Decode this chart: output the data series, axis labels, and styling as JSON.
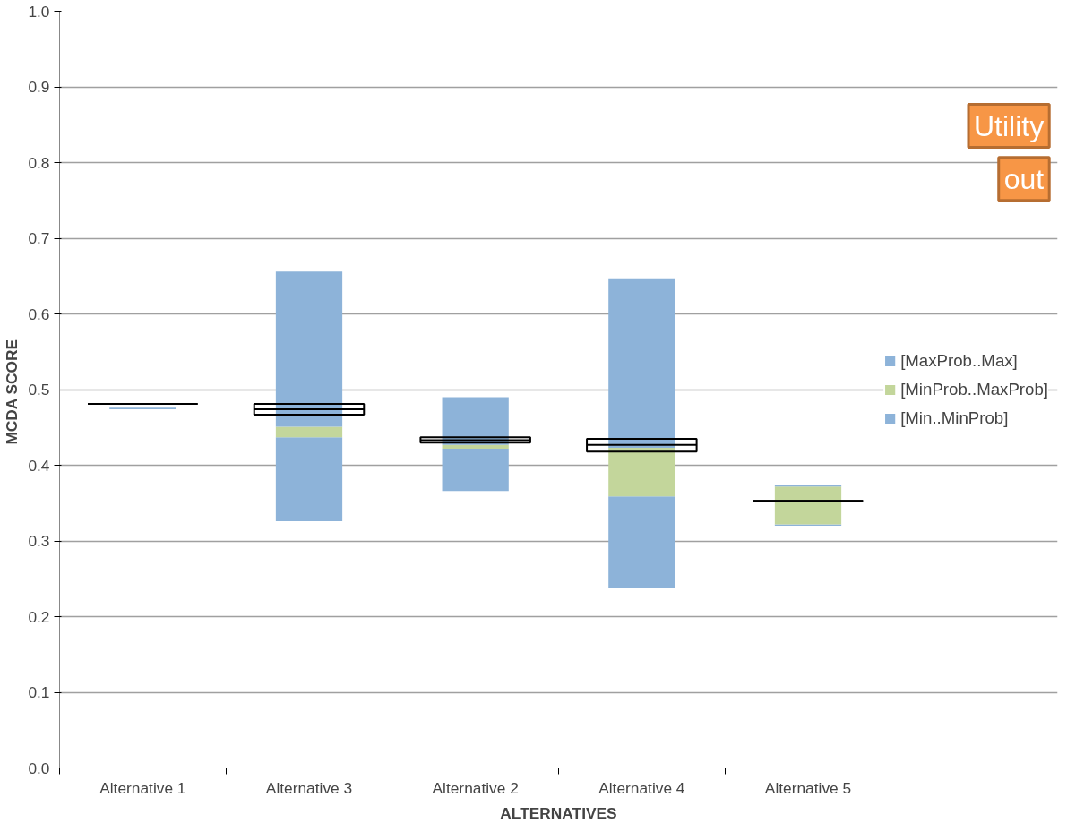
{
  "chart_data": {
    "type": "bar",
    "xlabel": "ALTERNATIVES",
    "ylabel": "MCDA  SCORE",
    "categories": [
      "Alternative 1",
      "Alternative 3",
      "Alternative 2",
      "Alternative 4",
      "Alternative 5"
    ],
    "series": [
      {
        "name": "[Min..MinProb]",
        "color": "#8db3d9",
        "base": [
          0.474,
          0.326,
          0.366,
          0.238,
          0.32
        ],
        "values": [
          0.002,
          0.111,
          0.056,
          0.121,
          0.002
        ]
      },
      {
        "name": "[MinProb..MaxProb]",
        "color": "#c3d69b",
        "base": [
          null,
          0.437,
          0.422,
          0.359,
          0.322
        ],
        "values": [
          null,
          0.014,
          0.005,
          0.064,
          0.05
        ]
      },
      {
        "name": "[MaxProb..Max]",
        "color": "#8db3d9",
        "base": [
          null,
          0.451,
          0.427,
          0.423,
          0.372
        ],
        "values": [
          null,
          0.205,
          0.063,
          0.224,
          0.002
        ]
      },
      {
        "type": "box",
        "color": "#000000",
        "boxes": [
          {
            "low": 0.481,
            "q1": 0.481,
            "median": 0.481,
            "q3": 0.481,
            "high": 0.481
          },
          {
            "low": 0.467,
            "q1": 0.467,
            "median": 0.474,
            "q3": 0.481,
            "high": 0.481
          },
          {
            "low": 0.43,
            "q1": 0.43,
            "median": 0.433,
            "q3": 0.437,
            "high": 0.437
          },
          {
            "low": 0.418,
            "q1": 0.418,
            "median": 0.427,
            "q3": 0.435,
            "high": 0.435
          },
          {
            "low": 0.353,
            "q1": 0.353,
            "median": 0.353,
            "q3": 0.353,
            "high": 0.353
          }
        ]
      }
    ],
    "ylim": [
      0,
      1
    ],
    "yticks": [
      {
        "value": 0,
        "label": "0.0"
      },
      {
        "value": 0.1,
        "label": "0.1"
      },
      {
        "value": 0.2,
        "label": "0.2"
      },
      {
        "value": 0.3,
        "label": "0.3"
      },
      {
        "value": 0.4,
        "label": "0.4"
      },
      {
        "value": 0.5,
        "label": "0.5"
      },
      {
        "value": 0.6,
        "label": "0.6"
      },
      {
        "value": 0.7,
        "label": "0.7"
      },
      {
        "value": 0.8,
        "label": "0.8"
      },
      {
        "value": 0.9,
        "label": "0.9"
      },
      {
        "value": 1,
        "label": "1.0"
      }
    ],
    "grid": "y",
    "legend": "right",
    "annotations": [
      "Utility",
      "out"
    ]
  }
}
